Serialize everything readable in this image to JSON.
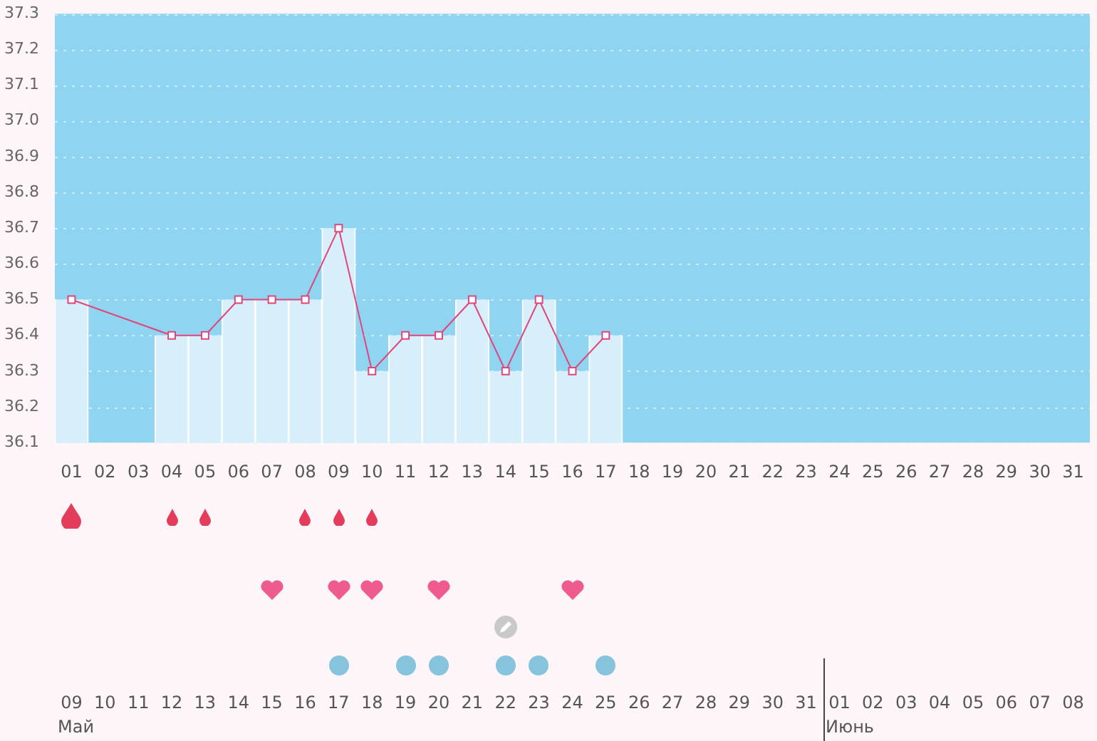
{
  "chart_data": {
    "type": "line",
    "categories": [
      "01",
      "02",
      "03",
      "04",
      "05",
      "06",
      "07",
      "08",
      "09",
      "10",
      "11",
      "12",
      "13",
      "14",
      "15",
      "16",
      "17",
      "18",
      "19",
      "20",
      "21",
      "22",
      "23",
      "24",
      "25",
      "26",
      "27",
      "28",
      "29",
      "30",
      "31"
    ],
    "series": [
      {
        "type": "bar",
        "color": "#d6effa",
        "values": [
          36.5,
          null,
          null,
          36.4,
          36.4,
          36.5,
          36.5,
          36.5,
          36.7,
          36.3,
          36.4,
          36.4,
          36.5,
          36.3,
          36.5,
          36.3,
          36.4,
          null,
          null,
          null,
          null,
          null,
          null,
          null,
          null,
          null,
          null,
          null,
          null,
          null,
          null
        ]
      },
      {
        "color": "#e0457b",
        "values": [
          36.5,
          null,
          null,
          36.4,
          36.4,
          36.5,
          36.5,
          36.5,
          36.7,
          36.3,
          36.4,
          36.4,
          36.5,
          36.3,
          36.5,
          36.3,
          36.4,
          null,
          null,
          null,
          null,
          null,
          null,
          null,
          null,
          null,
          null,
          null,
          null,
          null,
          null
        ]
      }
    ],
    "ylim": [
      36.1,
      37.3
    ],
    "yticks": [
      36.1,
      36.2,
      36.3,
      36.4,
      36.5,
      36.6,
      36.7,
      36.8,
      36.9,
      {
        "value": 37.0,
        "label": "37.0"
      },
      37.1,
      37.2,
      37.3
    ],
    "grid": "y",
    "legend": false,
    "marker": "square",
    "annotations": [
      "09",
      "10",
      "11",
      "12",
      "13",
      "14",
      "15",
      "16",
      "17",
      "18",
      "19",
      "20",
      "21",
      "22",
      "23",
      "24",
      "25",
      "26",
      "27",
      "28",
      "29",
      "30",
      "31",
      "01",
      "02",
      "03",
      "04",
      "05",
      "06",
      "07",
      "08",
      "Май",
      "Июнь"
    ]
  }
}
